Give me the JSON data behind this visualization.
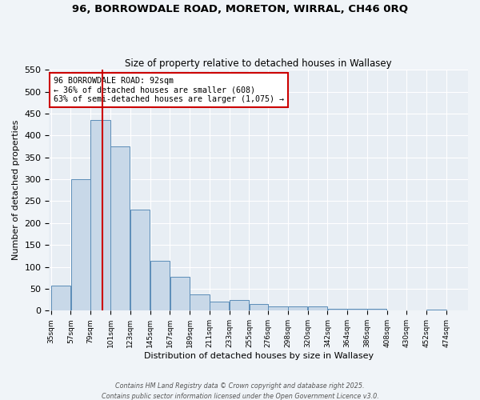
{
  "title": "96, BORROWDALE ROAD, MORETON, WIRRAL, CH46 0RQ",
  "subtitle": "Size of property relative to detached houses in Wallasey",
  "xlabel": "Distribution of detached houses by size in Wallasey",
  "ylabel": "Number of detached properties",
  "bin_labels": [
    "35sqm",
    "57sqm",
    "79sqm",
    "101sqm",
    "123sqm",
    "145sqm",
    "167sqm",
    "189sqm",
    "211sqm",
    "233sqm",
    "255sqm",
    "276sqm",
    "298sqm",
    "320sqm",
    "342sqm",
    "364sqm",
    "386sqm",
    "408sqm",
    "430sqm",
    "452sqm",
    "474sqm"
  ],
  "bin_edges": [
    35,
    57,
    79,
    101,
    123,
    145,
    167,
    189,
    211,
    233,
    255,
    276,
    298,
    320,
    342,
    364,
    386,
    408,
    430,
    452,
    474
  ],
  "values": [
    57,
    300,
    435,
    375,
    230,
    113,
    78,
    38,
    20,
    25,
    15,
    9,
    9,
    9,
    4,
    4,
    4,
    0,
    0,
    3
  ],
  "bar_color": "#c8d8e8",
  "bar_edge_color": "#5b8db8",
  "vline_x": 92,
  "vline_color": "#cc0000",
  "annotation_line1": "96 BORROWDALE ROAD: 92sqm",
  "annotation_line2": "← 36% of detached houses are smaller (608)",
  "annotation_line3": "63% of semi-detached houses are larger (1,075) →",
  "annotation_box_color": "#ffffff",
  "annotation_edge_color": "#cc0000",
  "ylim": [
    0,
    550
  ],
  "yticks": [
    0,
    50,
    100,
    150,
    200,
    250,
    300,
    350,
    400,
    450,
    500,
    550
  ],
  "bg_color": "#e8eef4",
  "fig_bg_color": "#f0f4f8",
  "footer1": "Contains HM Land Registry data © Crown copyright and database right 2025.",
  "footer2": "Contains public sector information licensed under the Open Government Licence v3.0."
}
